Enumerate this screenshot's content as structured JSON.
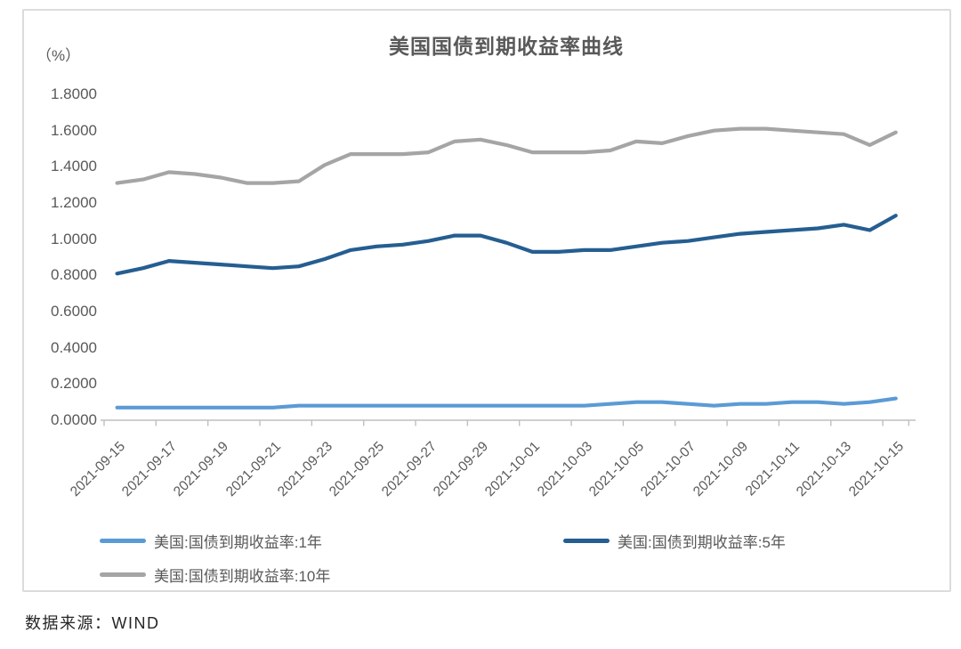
{
  "chart": {
    "border_color": "#dcdcdc",
    "axis_color": "#bfbfbf",
    "text_color": "#595959"
  },
  "chart_data": {
    "type": "line",
    "title": "美国国债到期收益率曲线",
    "ylabel": "（%）",
    "xlabel": "",
    "source": "数据来源：WIND",
    "ylim": [
      0,
      1.8
    ],
    "ytick_step": 0.2,
    "yticks": [
      "0.0000",
      "0.2000",
      "0.4000",
      "0.6000",
      "0.8000",
      "1.0000",
      "1.2000",
      "1.4000",
      "1.6000",
      "1.8000"
    ],
    "grid": false,
    "legend_position": "bottom",
    "xtick_every": 2,
    "x": [
      "2021-09-15",
      "2021-09-16",
      "2021-09-17",
      "2021-09-18",
      "2021-09-19",
      "2021-09-20",
      "2021-09-21",
      "2021-09-22",
      "2021-09-23",
      "2021-09-24",
      "2021-09-25",
      "2021-09-26",
      "2021-09-27",
      "2021-09-28",
      "2021-09-29",
      "2021-09-30",
      "2021-10-01",
      "2021-10-02",
      "2021-10-03",
      "2021-10-04",
      "2021-10-05",
      "2021-10-06",
      "2021-10-07",
      "2021-10-08",
      "2021-10-09",
      "2021-10-10",
      "2021-10-11",
      "2021-10-12",
      "2021-10-13",
      "2021-10-14",
      "2021-10-15"
    ],
    "xtick_labels": [
      "2021-09-15",
      "2021-09-17",
      "2021-09-19",
      "2021-09-21",
      "2021-09-23",
      "2021-09-25",
      "2021-09-27",
      "2021-09-29",
      "2021-10-01",
      "2021-10-03",
      "2021-10-05",
      "2021-10-07",
      "2021-10-09",
      "2021-10-11",
      "2021-10-13",
      "2021-10-15"
    ],
    "series": [
      {
        "name": "美国:国债到期收益率:1年",
        "color": "#5b9bd5",
        "values": [
          0.07,
          0.07,
          0.07,
          0.07,
          0.07,
          0.07,
          0.07,
          0.08,
          0.08,
          0.08,
          0.08,
          0.08,
          0.08,
          0.08,
          0.08,
          0.08,
          0.08,
          0.08,
          0.08,
          0.09,
          0.1,
          0.1,
          0.09,
          0.08,
          0.09,
          0.09,
          0.1,
          0.1,
          0.09,
          0.1,
          0.12
        ]
      },
      {
        "name": "美国:国债到期收益率:5年",
        "color": "#255e91",
        "values": [
          0.81,
          0.84,
          0.88,
          0.87,
          0.86,
          0.85,
          0.84,
          0.85,
          0.89,
          0.94,
          0.96,
          0.97,
          0.99,
          1.02,
          1.02,
          0.98,
          0.93,
          0.93,
          0.94,
          0.94,
          0.96,
          0.98,
          0.99,
          1.01,
          1.03,
          1.04,
          1.05,
          1.06,
          1.08,
          1.05,
          1.13
        ]
      },
      {
        "name": "美国:国债到期收益率:10年",
        "color": "#a5a5a5",
        "values": [
          1.31,
          1.33,
          1.37,
          1.36,
          1.34,
          1.31,
          1.31,
          1.32,
          1.41,
          1.47,
          1.47,
          1.47,
          1.48,
          1.54,
          1.55,
          1.52,
          1.48,
          1.48,
          1.48,
          1.49,
          1.54,
          1.53,
          1.57,
          1.6,
          1.61,
          1.61,
          1.6,
          1.59,
          1.58,
          1.52,
          1.59
        ]
      }
    ]
  }
}
